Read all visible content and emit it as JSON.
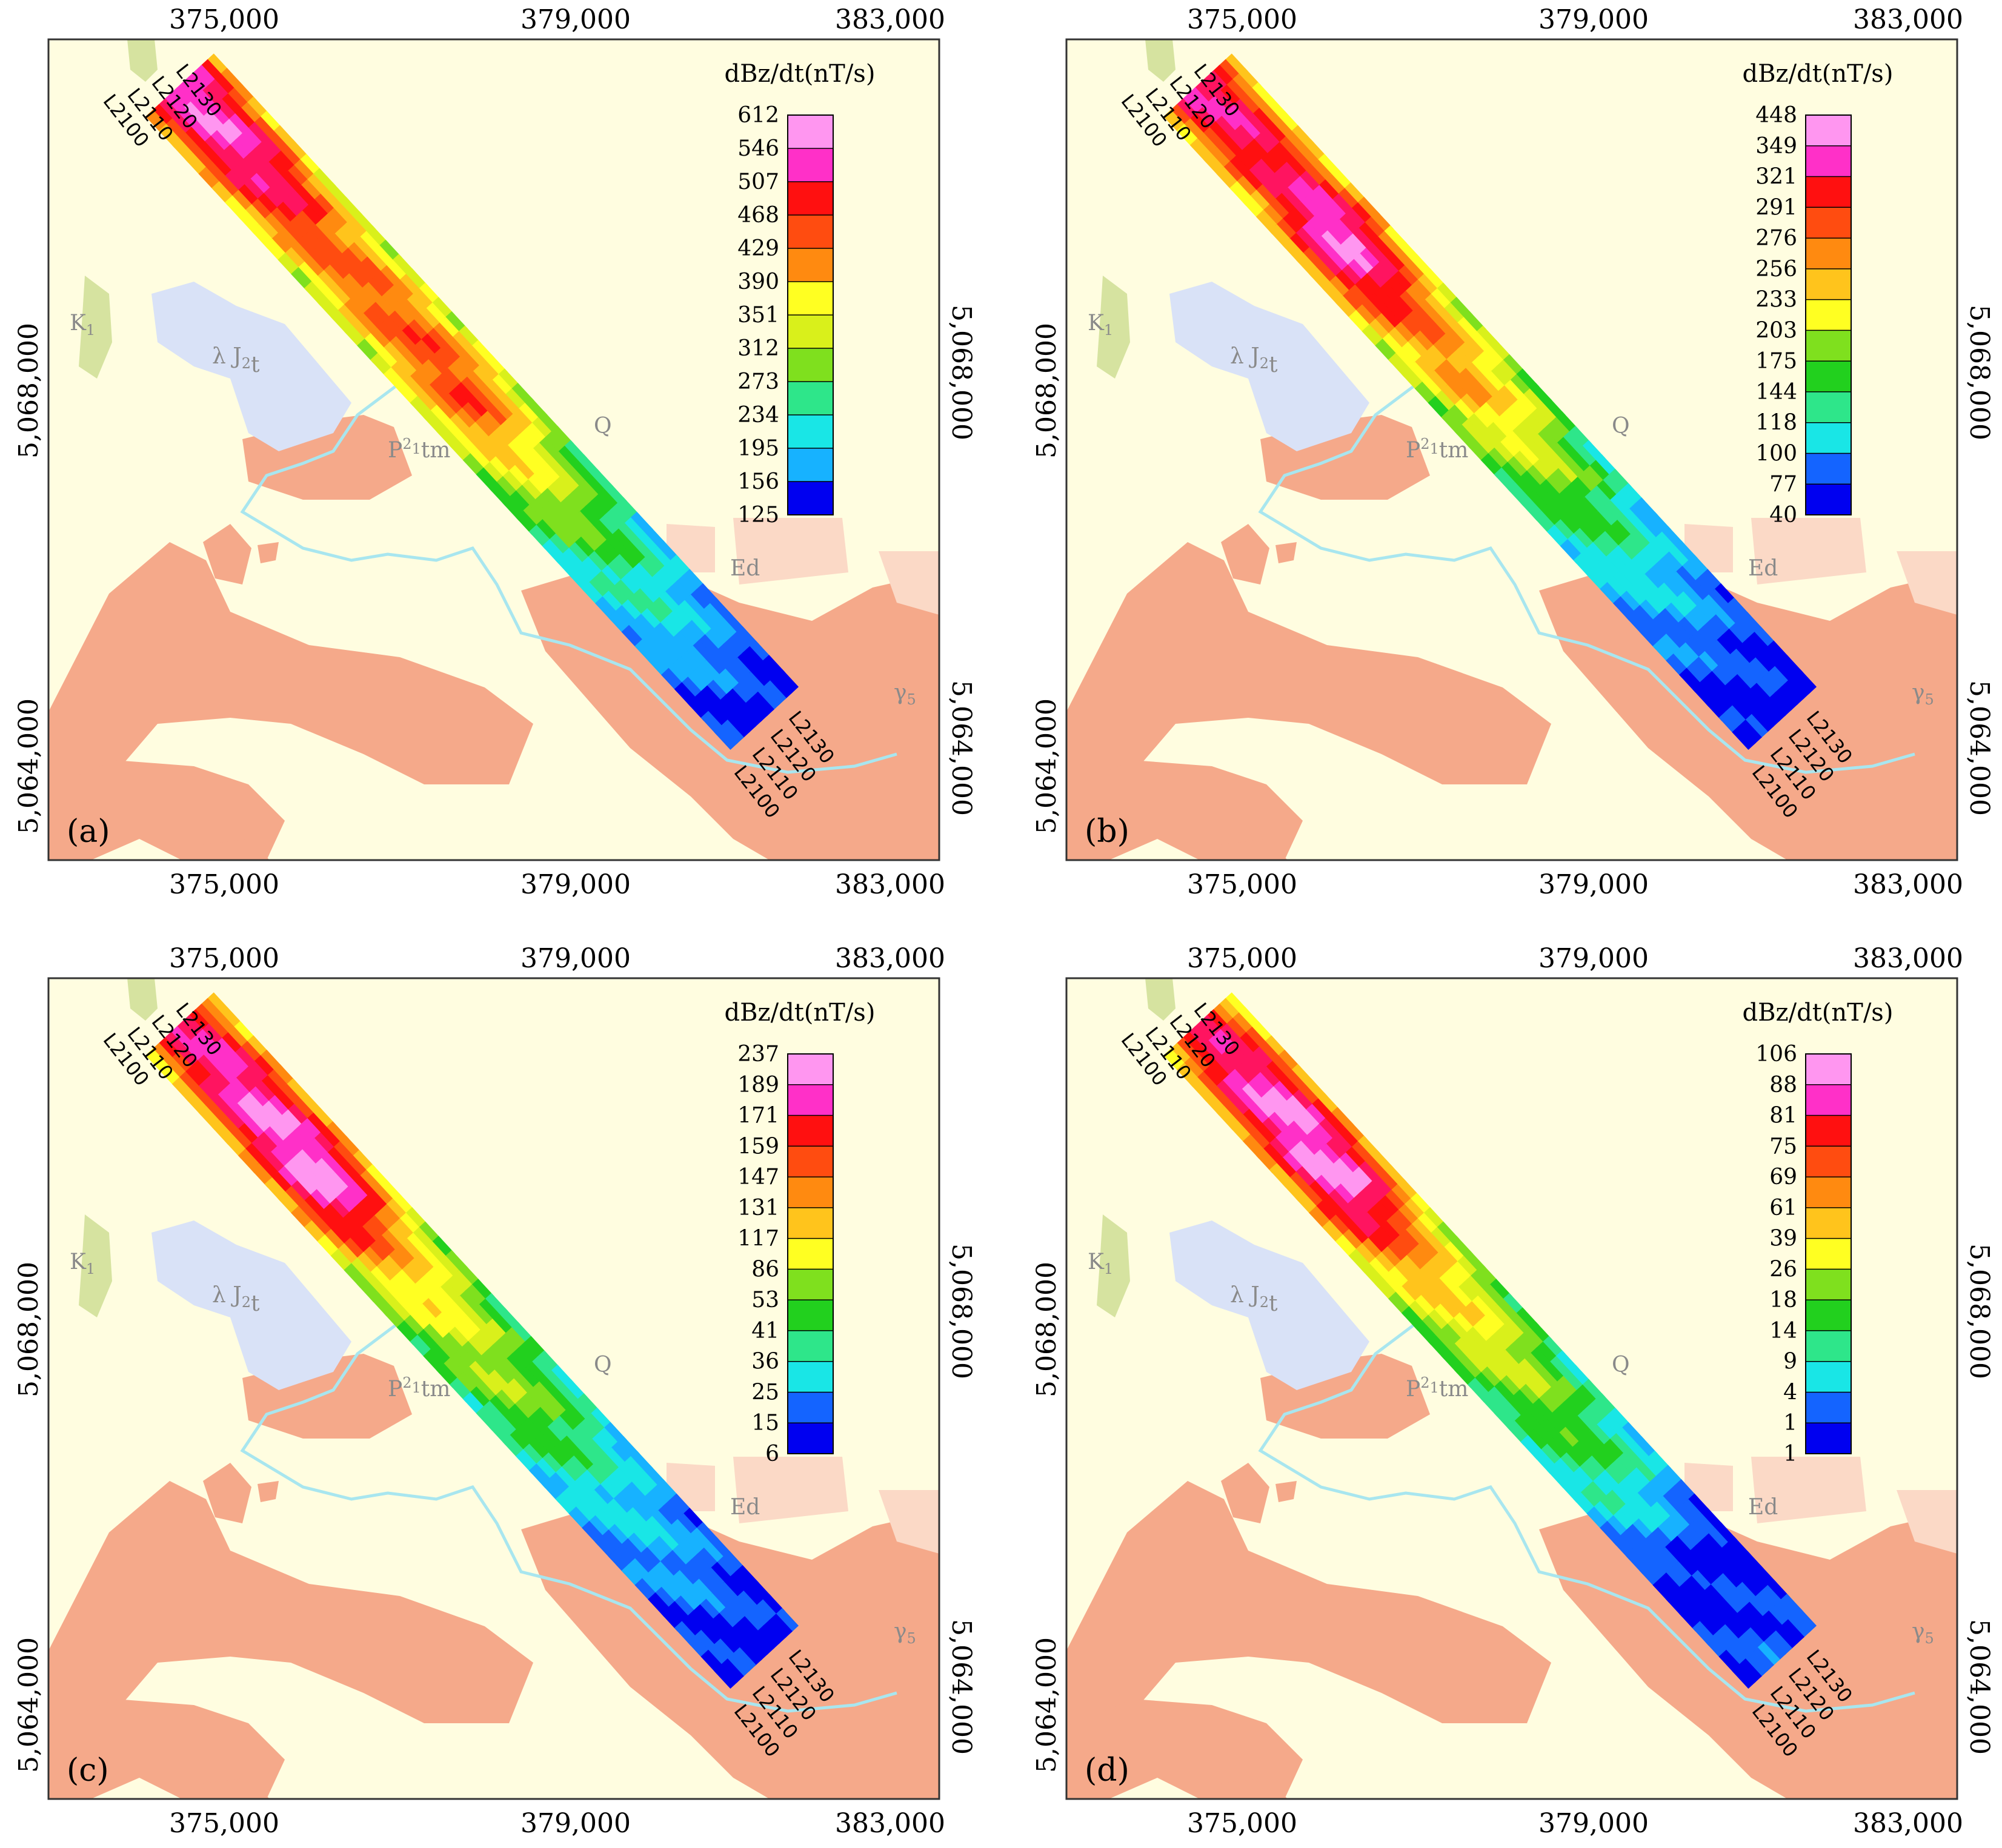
{
  "map_common": {
    "x_ticks": [
      "375,000",
      "379,000",
      "383,000"
    ],
    "y_ticks": [
      "5,068,000",
      "5,064,000"
    ],
    "geo_labels": {
      "k1_base": "K",
      "k1_sub": "1",
      "j2t_pre": "λ J",
      "j2t_sub": "2",
      "j2t_post": "t",
      "ptm_base": "P",
      "ptm_sup": "2",
      "ptm_sub": "1",
      "ptm_post": "tm",
      "q": "Q",
      "ed": "Ed",
      "g5_base": "γ",
      "g5_sub": "5"
    },
    "line_labels": [
      "L2100",
      "L2110",
      "L2120",
      "L2130"
    ],
    "legend_title": "dBz/dt(nT/s)"
  },
  "panels": [
    {
      "label": "(a)",
      "colorbar": [
        "612",
        "546",
        "507",
        "468",
        "429",
        "390",
        "351",
        "312",
        "273",
        "234",
        "195",
        "156",
        "125"
      ],
      "profile": [
        0.96,
        0.9,
        0.7,
        0.72,
        0.74,
        0.5,
        0.32,
        0.18,
        0.05
      ]
    },
    {
      "label": "(b)",
      "colorbar": [
        "448",
        "349",
        "321",
        "291",
        "276",
        "256",
        "233",
        "203",
        "175",
        "144",
        "118",
        "100",
        "77",
        "40"
      ],
      "profile": [
        0.9,
        0.82,
        0.97,
        0.7,
        0.6,
        0.42,
        0.25,
        0.12,
        0.03
      ]
    },
    {
      "label": "(c)",
      "colorbar": [
        "237",
        "189",
        "171",
        "159",
        "147",
        "131",
        "117",
        "86",
        "53",
        "41",
        "36",
        "25",
        "15",
        "6"
      ],
      "profile": [
        0.86,
        0.95,
        0.97,
        0.62,
        0.48,
        0.38,
        0.22,
        0.13,
        0.04
      ]
    },
    {
      "label": "(d)",
      "colorbar": [
        "106",
        "88",
        "81",
        "75",
        "69",
        "61",
        "39",
        "26",
        "18",
        "14",
        "9",
        "4",
        "1",
        "1"
      ],
      "profile": [
        0.83,
        0.96,
        0.97,
        0.64,
        0.5,
        0.38,
        0.25,
        0.02,
        0.1
      ]
    }
  ],
  "colors": {
    "background": "#fffde0",
    "granite": "#f5a98a",
    "ed": "#fbd9c6",
    "j2t": "#d9e2f7",
    "k1": "#d6e3a0",
    "river": "#a8e6ef"
  }
}
